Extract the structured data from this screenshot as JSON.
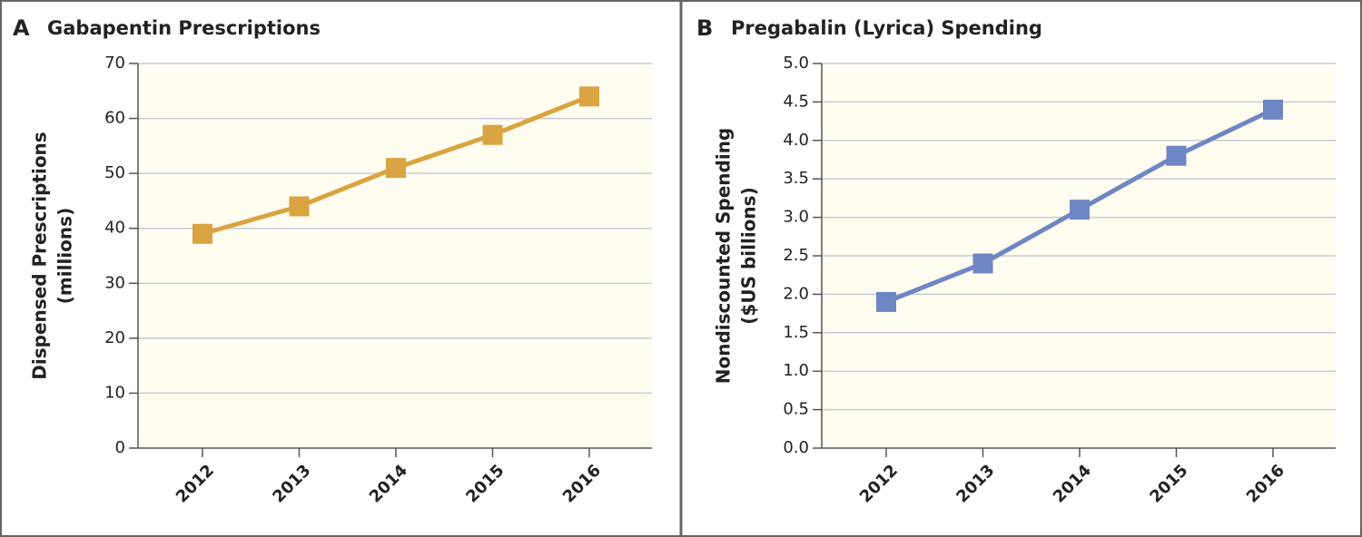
{
  "chart_data": [
    {
      "type": "line",
      "panel": "A",
      "title": "Gabapentin Prescriptions",
      "ylabel": [
        "Dispensed Prescriptions",
        "(millions)"
      ],
      "categories": [
        "2012",
        "2013",
        "2014",
        "2015",
        "2016"
      ],
      "series": [
        {
          "color": "#d9a441",
          "values": [
            39,
            44,
            51,
            57,
            64
          ]
        }
      ],
      "ylim": [
        0,
        70
      ],
      "yticks": [
        0,
        10,
        20,
        30,
        40,
        50,
        60,
        70
      ],
      "grid": true
    },
    {
      "type": "line",
      "panel": "B",
      "title": "Pregabalin (Lyrica) Spending",
      "ylabel": [
        "Nondiscounted Spending",
        "($US billions)"
      ],
      "categories": [
        "2012",
        "2013",
        "2014",
        "2015",
        "2016"
      ],
      "series": [
        {
          "color": "#6f86c4",
          "values": [
            1.9,
            2.4,
            3.1,
            3.8,
            4.4
          ]
        }
      ],
      "ylim": [
        0,
        5
      ],
      "yticks": [
        {
          "value": 0,
          "label": "0.0"
        },
        0.5,
        {
          "value": 1,
          "label": "1.0"
        },
        1.5,
        {
          "value": 2,
          "label": "2.0"
        },
        2.5,
        {
          "value": 3,
          "label": "3.0"
        },
        3.5,
        {
          "value": 4,
          "label": "4.0"
        },
        4.5,
        {
          "value": 5,
          "label": "5.0"
        }
      ],
      "grid": true
    }
  ]
}
